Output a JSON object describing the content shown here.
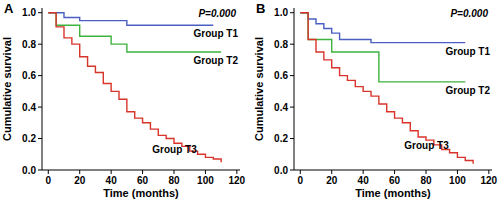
{
  "chart_data": [
    {
      "type": "line",
      "title": "A",
      "x_label": "Time (months)",
      "y_label": "Cumulative survival",
      "annotations": [
        "P=0.000"
      ],
      "line_style": "step",
      "marker": "none",
      "grid": false,
      "xlim": [
        -4,
        122
      ],
      "ylim": [
        0,
        1.03
      ],
      "xticks": [
        0,
        20,
        40,
        60,
        80,
        100,
        120
      ],
      "yticks": [
        {
          "value": 0,
          "label": "0.0"
        },
        0.2,
        0.4,
        0.6,
        0.8,
        {
          "value": 1,
          "label": "1.0"
        }
      ],
      "x": [
        0,
        5,
        10,
        15,
        20,
        25,
        30,
        35,
        40,
        45,
        50,
        55,
        60,
        65,
        70,
        75,
        80,
        85,
        90,
        95,
        100,
        105,
        110,
        115
      ],
      "series": [
        {
          "name": "Group T1",
          "color": "#4a5fc1",
          "values": [
            1,
            1,
            0.97,
            0.97,
            0.95,
            0.95,
            0.95,
            0.95,
            0.95,
            0.95,
            0.92,
            0.92,
            0.92,
            0.92,
            0.92,
            0.92,
            0.92,
            0.92,
            0.92,
            0.92,
            0.92,
            0.92,
            null,
            null
          ]
        },
        {
          "name": "Group T2",
          "color": "#3db33d",
          "values": [
            1,
            0.92,
            0.92,
            0.92,
            0.85,
            0.85,
            0.85,
            0.85,
            0.8,
            0.8,
            0.75,
            0.75,
            0.75,
            0.75,
            0.75,
            0.75,
            0.75,
            0.75,
            0.75,
            0.75,
            0.75,
            0.75,
            0.75,
            null
          ]
        },
        {
          "name": "Group T3",
          "color": "#d9342b",
          "values": [
            1,
            0.91,
            0.84,
            0.8,
            0.72,
            0.66,
            0.62,
            0.55,
            0.5,
            0.45,
            0.37,
            0.33,
            0.3,
            0.26,
            0.22,
            0.2,
            0.17,
            0.15,
            0.12,
            0.1,
            0.08,
            0.07,
            0.05,
            null
          ]
        }
      ]
    },
    {
      "type": "line",
      "title": "B",
      "x_label": "Time (months)",
      "y_label": "Cumulative survival",
      "annotations": [
        "P=0.000"
      ],
      "line_style": "step",
      "marker": "none",
      "grid": false,
      "xlim": [
        -4,
        122
      ],
      "ylim": [
        0,
        1.03
      ],
      "xticks": [
        0,
        20,
        40,
        60,
        80,
        100,
        120
      ],
      "yticks": [
        {
          "value": 0,
          "label": "0.0"
        },
        0.2,
        0.4,
        0.6,
        0.8,
        {
          "value": 1,
          "label": "1.0"
        }
      ],
      "x": [
        0,
        5,
        10,
        15,
        20,
        25,
        30,
        35,
        40,
        45,
        50,
        55,
        60,
        65,
        70,
        75,
        80,
        85,
        90,
        95,
        100,
        105,
        110,
        115
      ],
      "series": [
        {
          "name": "Group T1",
          "color": "#4a5fc1",
          "values": [
            1,
            0.96,
            0.93,
            0.9,
            0.87,
            0.83,
            0.83,
            0.83,
            0.83,
            0.81,
            0.81,
            0.81,
            0.81,
            0.81,
            0.81,
            0.81,
            0.81,
            0.81,
            0.81,
            0.81,
            0.81,
            0.81,
            null,
            null
          ]
        },
        {
          "name": "Group T2",
          "color": "#3db33d",
          "values": [
            1,
            0.83,
            0.83,
            0.83,
            0.75,
            0.75,
            0.75,
            0.75,
            0.75,
            0.75,
            0.56,
            0.56,
            0.56,
            0.56,
            0.56,
            0.56,
            0.56,
            0.56,
            0.56,
            0.56,
            0.56,
            0.56,
            null,
            null
          ]
        },
        {
          "name": "Group T3",
          "color": "#d9342b",
          "values": [
            1,
            0.83,
            0.75,
            0.7,
            0.65,
            0.6,
            0.57,
            0.53,
            0.5,
            0.47,
            0.42,
            0.37,
            0.33,
            0.3,
            0.25,
            0.21,
            0.19,
            0.16,
            0.13,
            0.11,
            0.08,
            0.06,
            0.04,
            null
          ]
        }
      ]
    }
  ]
}
